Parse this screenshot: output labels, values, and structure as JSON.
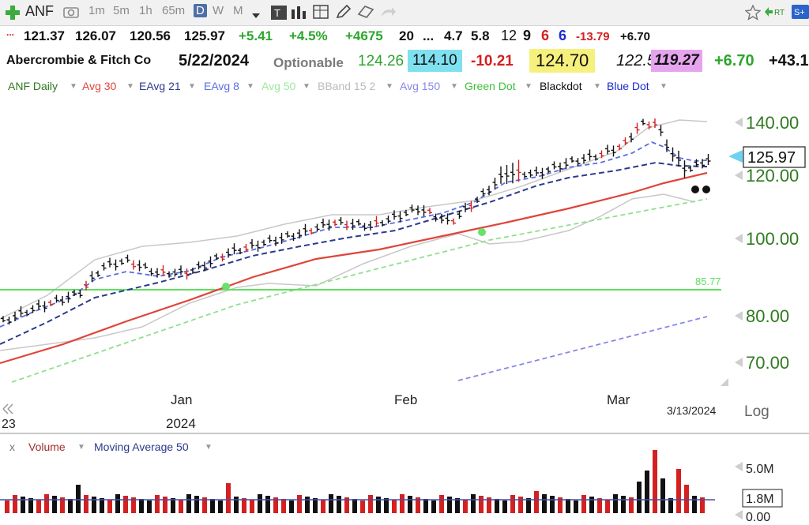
{
  "toolbar": {
    "symbol": "ANF",
    "intervals": [
      "1m",
      "5m",
      "1h",
      "65m",
      "D",
      "W",
      "M"
    ],
    "active_interval": "D",
    "type_label": "T"
  },
  "quote": {
    "open": "121.37",
    "high": "126.07",
    "low": "120.56",
    "close": "125.97",
    "change": "+5.41",
    "change_pct": "+4.5%",
    "vol_change": "+4675",
    "v20": "20",
    "ellipsis": "...",
    "v47": "4.7",
    "v58": "5.8",
    "c12": "12",
    "c9": "9",
    "c6": "6",
    "c6b": "6",
    "neg": "-13.79",
    "pos": "+6.70"
  },
  "info": {
    "lead_dots": "...",
    "company": "Abercrombie & Fitch Co",
    "date": "5/22/2024",
    "optionable": "Optionable",
    "p1": "124.26",
    "p2": "114.10",
    "p3": "-10.21",
    "p4": "124.70",
    "p5": "122.50",
    "p6": "119.27",
    "p7": "+6.70",
    "p8": "+43.1"
  },
  "legend": {
    "items": [
      "ANF Daily",
      "Avg 30",
      "EAvg 21",
      "EAvg 8",
      "Avg 50",
      "BBand 15 2",
      "Avg 150",
      "Green Dot",
      "Blackdot",
      "Blue Dot"
    ]
  },
  "axis": {
    "price_labels": [
      "140.00",
      "120.00",
      "100.00",
      "80.00",
      "70.00"
    ],
    "current_price": "125.97",
    "line_label": "85.77",
    "months": [
      "Jan",
      "Feb",
      "Mar"
    ],
    "year": "2024",
    "prev_year": "23",
    "cursor_date": "3/13/2024",
    "log_label": "Log"
  },
  "volume": {
    "close_label": "x",
    "label": "Volume",
    "ma_label": "Moving Average 50",
    "axis_labels": [
      "5.0M",
      "1.8M",
      "0.00"
    ]
  },
  "colors": {
    "avg30": "#e0443a",
    "eavg21": "#2c3a8c",
    "eavg8": "#5a6ee0",
    "avg50": "#8ee08e",
    "bband": "#c8c8c8",
    "avg150": "#8888e6",
    "green_dot": "#6be06b",
    "green_line": "#5ee05e",
    "up": "#111111",
    "down": "#d42020",
    "price_text": "#2f7a1f",
    "current_tag": "#6fd1ee"
  }
}
